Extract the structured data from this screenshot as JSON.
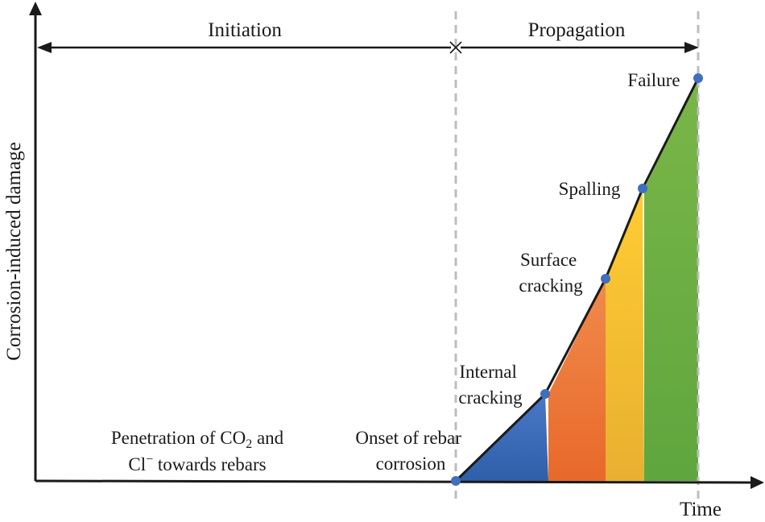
{
  "phases": {
    "initiation": "Initiation",
    "propagation": "Propagation"
  },
  "axes": {
    "y_label": "Corrosion-induced damage",
    "x_label": "Time"
  },
  "initiation_note": {
    "line1_pre": "Penetration of CO",
    "line1_sub": "2",
    "line1_post": " and",
    "line2_pre": "Cl",
    "line2_sup": "−",
    "line2_post": " towards rebars"
  },
  "stages": [
    {
      "name": "onset",
      "lines": [
        "Onset of rebar",
        "corrosion"
      ]
    },
    {
      "name": "internal-cracking",
      "lines": [
        "Internal",
        "cracking"
      ]
    },
    {
      "name": "surface-cracking",
      "lines": [
        "Surface",
        "cracking"
      ]
    },
    {
      "name": "spalling",
      "lines": [
        "Spalling"
      ]
    },
    {
      "name": "failure",
      "lines": [
        "Failure"
      ]
    }
  ],
  "colors": {
    "axis": "#1a1a1a",
    "dashed_divider": "#bdbdbd",
    "point": "#3f6fbd",
    "band_blue_top": "#4a78c8",
    "band_blue_bottom": "#2f5fa8",
    "band_orange_top": "#f08a4b",
    "band_orange_bottom": "#e8692a",
    "band_yellow_top": "#ffcc33",
    "band_yellow_bottom": "#e8b030",
    "band_green_top": "#7ab648",
    "band_green_bottom": "#5fa63e"
  }
}
